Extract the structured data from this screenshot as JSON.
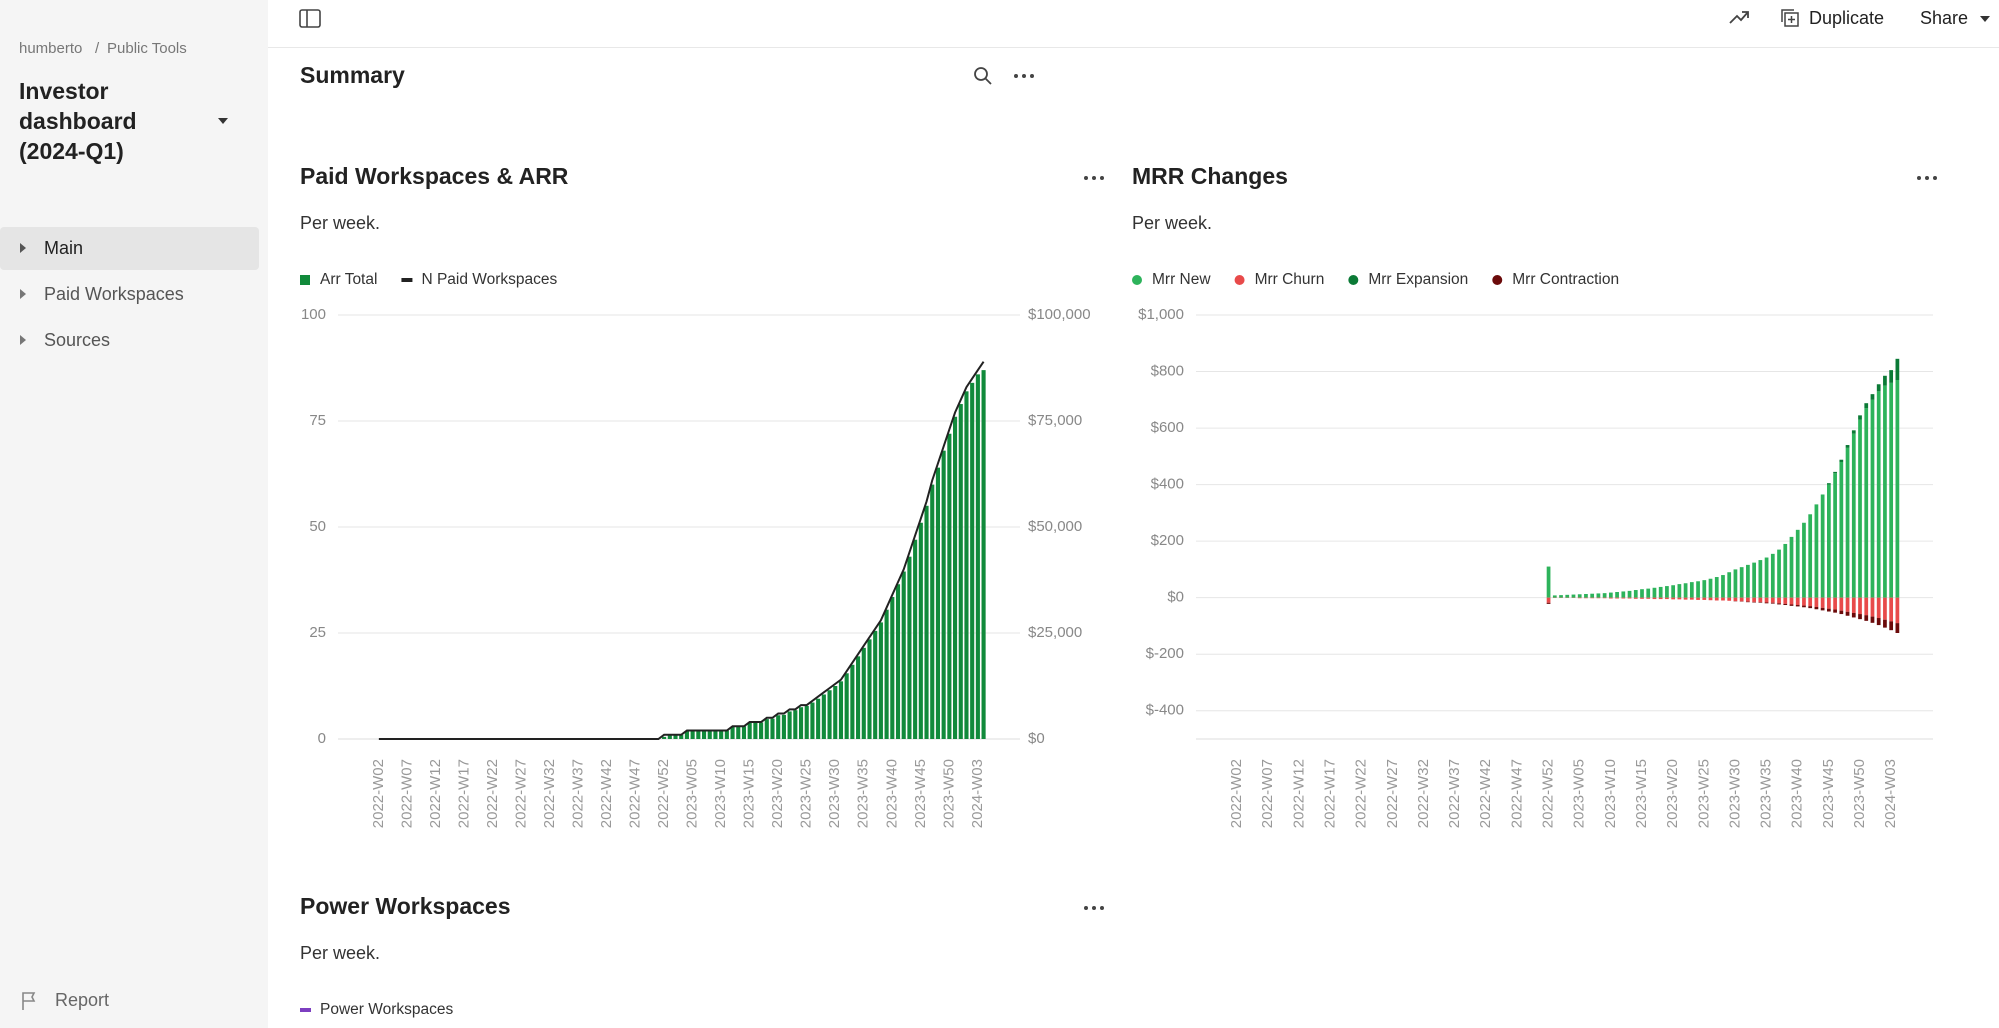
{
  "sidebar": {
    "breadcrumb": {
      "user": "humberto",
      "separator": "/",
      "project": "Public Tools"
    },
    "title": "Investor dashboard (2024-Q1)",
    "nav": [
      "Main",
      "Paid Workspaces",
      "Sources"
    ],
    "footer": "Report"
  },
  "toolbar": {
    "duplicate": "Duplicate",
    "share": "Share"
  },
  "section": {
    "title": "Summary"
  },
  "chart_data": [
    {
      "type": "combo",
      "title": "Paid Workspaces & ARR",
      "subtitle": "Per week.",
      "categories": [
        "2022-W02",
        null,
        null,
        null,
        null,
        "2022-W07",
        null,
        null,
        null,
        null,
        "2022-W12",
        null,
        null,
        null,
        null,
        "2022-W17",
        null,
        null,
        null,
        null,
        "2022-W22",
        null,
        null,
        null,
        null,
        "2022-W27",
        null,
        null,
        null,
        null,
        "2022-W32",
        null,
        null,
        null,
        null,
        "2022-W37",
        null,
        null,
        null,
        null,
        "2022-W42",
        null,
        null,
        null,
        null,
        "2022-W47",
        null,
        null,
        null,
        null,
        "2022-W52",
        null,
        null,
        null,
        null,
        "2023-W05",
        null,
        null,
        null,
        null,
        "2023-W10",
        null,
        null,
        null,
        null,
        "2023-W15",
        null,
        null,
        null,
        null,
        "2023-W20",
        null,
        null,
        null,
        null,
        "2023-W25",
        null,
        null,
        null,
        null,
        "2023-W30",
        null,
        null,
        null,
        null,
        "2023-W35",
        null,
        null,
        null,
        null,
        "2023-W40",
        null,
        null,
        null,
        null,
        "2023-W45",
        null,
        null,
        null,
        null,
        "2023-W50",
        null,
        null,
        null,
        null,
        "2024-W03",
        null
      ],
      "series": [
        {
          "name": "Arr Total",
          "type": "bar",
          "axis": "y2",
          "color": "#118a3b",
          "values": [
            0,
            0,
            0,
            0,
            0,
            0,
            0,
            0,
            0,
            0,
            0,
            0,
            0,
            0,
            0,
            0,
            0,
            0,
            0,
            0,
            0,
            0,
            0,
            0,
            0,
            0,
            0,
            0,
            0,
            0,
            0,
            0,
            0,
            0,
            0,
            0,
            0,
            0,
            0,
            0,
            0,
            0,
            0,
            0,
            0,
            0,
            0,
            0,
            0,
            0,
            500,
            1000,
            1000,
            1000,
            1800,
            1800,
            1800,
            1800,
            1900,
            1900,
            1900,
            2000,
            2900,
            3000,
            3000,
            3800,
            3900,
            3900,
            4700,
            4800,
            5600,
            5700,
            6500,
            6800,
            7500,
            7800,
            8600,
            9500,
            10500,
            11500,
            12500,
            13600,
            15500,
            17500,
            19500,
            21500,
            23500,
            25500,
            27500,
            30500,
            33500,
            36500,
            39500,
            43000,
            47000,
            51000,
            55000,
            60000,
            64000,
            68000,
            72000,
            76000,
            79000,
            82000,
            84000,
            86000,
            87000
          ]
        },
        {
          "name": "N Paid Workspaces",
          "type": "line",
          "color": "#222222",
          "values": [
            0,
            0,
            0,
            0,
            0,
            0,
            0,
            0,
            0,
            0,
            0,
            0,
            0,
            0,
            0,
            0,
            0,
            0,
            0,
            0,
            0,
            0,
            0,
            0,
            0,
            0,
            0,
            0,
            0,
            0,
            0,
            0,
            0,
            0,
            0,
            0,
            0,
            0,
            0,
            0,
            0,
            0,
            0,
            0,
            0,
            0,
            0,
            0,
            0,
            0,
            1,
            1,
            1,
            1,
            2,
            2,
            2,
            2,
            2,
            2,
            2,
            2,
            3,
            3,
            3,
            4,
            4,
            4,
            5,
            5,
            6,
            6,
            7,
            7,
            8,
            8,
            9,
            10,
            11,
            12,
            13,
            14,
            16,
            18,
            20,
            22,
            24,
            26,
            28,
            31,
            34,
            37,
            40,
            44,
            48,
            52,
            56,
            61,
            65,
            69,
            73,
            77,
            80,
            83,
            85,
            87,
            89
          ]
        }
      ],
      "ylim": [
        0,
        100
      ],
      "yticks": [
        0,
        25,
        50,
        75,
        100
      ],
      "y2lim": [
        0,
        100000
      ],
      "y2ticks": [
        {
          "value": 0,
          "label": "$0"
        },
        {
          "value": 25000,
          "label": "$25,000"
        },
        {
          "value": 50000,
          "label": "$50,000"
        },
        {
          "value": 75000,
          "label": "$75,000"
        },
        {
          "value": 100000,
          "label": "$100,000"
        }
      ],
      "grid": true
    },
    {
      "type": "stacked",
      "title": "MRR Changes",
      "subtitle": "Per week.",
      "categories": [
        "2022-W02",
        null,
        null,
        null,
        null,
        "2022-W07",
        null,
        null,
        null,
        null,
        "2022-W12",
        null,
        null,
        null,
        null,
        "2022-W17",
        null,
        null,
        null,
        null,
        "2022-W22",
        null,
        null,
        null,
        null,
        "2022-W27",
        null,
        null,
        null,
        null,
        "2022-W32",
        null,
        null,
        null,
        null,
        "2022-W37",
        null,
        null,
        null,
        null,
        "2022-W42",
        null,
        null,
        null,
        null,
        "2022-W47",
        null,
        null,
        null,
        null,
        "2022-W52",
        null,
        null,
        null,
        null,
        "2023-W05",
        null,
        null,
        null,
        null,
        "2023-W10",
        null,
        null,
        null,
        null,
        "2023-W15",
        null,
        null,
        null,
        null,
        "2023-W20",
        null,
        null,
        null,
        null,
        "2023-W25",
        null,
        null,
        null,
        null,
        "2023-W30",
        null,
        null,
        null,
        null,
        "2023-W35",
        null,
        null,
        null,
        null,
        "2023-W40",
        null,
        null,
        null,
        null,
        "2023-W45",
        null,
        null,
        null,
        null,
        "2023-W50",
        null,
        null,
        null,
        null,
        "2024-W03",
        null
      ],
      "series": [
        {
          "name": "Mrr New",
          "color": "#2db35b",
          "values": [
            0,
            0,
            0,
            0,
            0,
            0,
            0,
            0,
            0,
            0,
            0,
            0,
            0,
            0,
            0,
            0,
            0,
            0,
            0,
            0,
            0,
            0,
            0,
            0,
            0,
            0,
            0,
            0,
            0,
            0,
            0,
            0,
            0,
            0,
            0,
            0,
            0,
            0,
            0,
            0,
            0,
            0,
            0,
            0,
            0,
            0,
            0,
            0,
            0,
            0,
            110,
            8,
            9,
            10,
            11,
            12,
            13,
            14,
            15,
            16,
            18,
            20,
            22,
            24,
            27,
            30,
            32,
            35,
            38,
            41,
            44,
            48,
            51,
            55,
            58,
            62,
            67,
            73,
            80,
            90,
            100,
            108,
            116,
            124,
            133,
            142,
            155,
            170,
            190,
            215,
            240,
            265,
            295,
            330,
            365,
            400,
            440,
            480,
            530,
            580,
            630,
            670,
            700,
            730,
            750,
            760,
            770
          ]
        },
        {
          "name": "Mrr Churn",
          "color": "#e84a4a",
          "values": [
            0,
            0,
            0,
            0,
            0,
            0,
            0,
            0,
            0,
            0,
            0,
            0,
            0,
            0,
            0,
            0,
            0,
            0,
            0,
            0,
            0,
            0,
            0,
            0,
            0,
            0,
            0,
            0,
            0,
            0,
            0,
            0,
            0,
            0,
            0,
            0,
            0,
            0,
            0,
            0,
            0,
            0,
            0,
            0,
            0,
            0,
            0,
            0,
            0,
            0,
            -18,
            -1,
            -1,
            -1,
            -1,
            -2,
            -2,
            -2,
            -2,
            -2,
            -3,
            -3,
            -3,
            -3,
            -4,
            -4,
            -4,
            -5,
            -5,
            -5,
            -6,
            -6,
            -7,
            -7,
            -8,
            -8,
            -9,
            -10,
            -10,
            -11,
            -12,
            -13,
            -14,
            -15,
            -16,
            -17,
            -18,
            -20,
            -22,
            -24,
            -26,
            -28,
            -30,
            -33,
            -36,
            -39,
            -42,
            -46,
            -50,
            -54,
            -58,
            -62,
            -67,
            -72,
            -78,
            -84,
            -90
          ]
        },
        {
          "name": "Mrr Expansion",
          "color": "#0b7a36",
          "values": [
            0,
            0,
            0,
            0,
            0,
            0,
            0,
            0,
            0,
            0,
            0,
            0,
            0,
            0,
            0,
            0,
            0,
            0,
            0,
            0,
            0,
            0,
            0,
            0,
            0,
            0,
            0,
            0,
            0,
            0,
            0,
            0,
            0,
            0,
            0,
            0,
            0,
            0,
            0,
            0,
            0,
            0,
            0,
            0,
            0,
            0,
            0,
            0,
            0,
            0,
            0,
            0,
            0,
            0,
            0,
            0,
            0,
            0,
            0,
            0,
            0,
            0,
            0,
            0,
            0,
            0,
            0,
            0,
            0,
            0,
            0,
            0,
            0,
            0,
            0,
            0,
            0,
            0,
            0,
            0,
            0,
            0,
            0,
            0,
            0,
            0,
            0,
            0,
            0,
            0,
            0,
            0,
            0,
            0,
            0,
            5,
            5,
            8,
            10,
            12,
            15,
            18,
            20,
            25,
            35,
            45,
            75
          ]
        },
        {
          "name": "Mrr Contraction",
          "color": "#6b0a0a",
          "values": [
            0,
            0,
            0,
            0,
            0,
            0,
            0,
            0,
            0,
            0,
            0,
            0,
            0,
            0,
            0,
            0,
            0,
            0,
            0,
            0,
            0,
            0,
            0,
            0,
            0,
            0,
            0,
            0,
            0,
            0,
            0,
            0,
            0,
            0,
            0,
            0,
            0,
            0,
            0,
            0,
            0,
            0,
            0,
            0,
            0,
            0,
            0,
            0,
            0,
            0,
            -4,
            0,
            0,
            0,
            0,
            0,
            0,
            0,
            0,
            0,
            0,
            0,
            0,
            0,
            0,
            0,
            0,
            0,
            0,
            0,
            0,
            0,
            0,
            0,
            0,
            0,
            0,
            0,
            0,
            0,
            -1,
            -1,
            -2,
            -2,
            -2,
            -3,
            -3,
            -4,
            -4,
            -5,
            -5,
            -6,
            -7,
            -8,
            -9,
            -10,
            -11,
            -12,
            -14,
            -16,
            -18,
            -20,
            -22,
            -25,
            -28,
            -31,
            -35
          ]
        }
      ],
      "ylim": [
        -500,
        1000
      ],
      "yticks": [
        {
          "value": -400,
          "label": "$-400"
        },
        {
          "value": -200,
          "label": "$-200"
        },
        {
          "value": 0,
          "label": "$0"
        },
        {
          "value": 200,
          "label": "$200"
        },
        {
          "value": 400,
          "label": "$400"
        },
        {
          "value": 600,
          "label": "$600"
        },
        {
          "value": 800,
          "label": "$800"
        },
        {
          "value": 1000,
          "label": "$1,000"
        }
      ],
      "grid": true
    },
    {
      "type": "bar",
      "title": "Power Workspaces",
      "subtitle": "Per week.",
      "series": [
        {
          "name": "Power Workspaces",
          "color": "#7d3fc0"
        }
      ]
    }
  ]
}
